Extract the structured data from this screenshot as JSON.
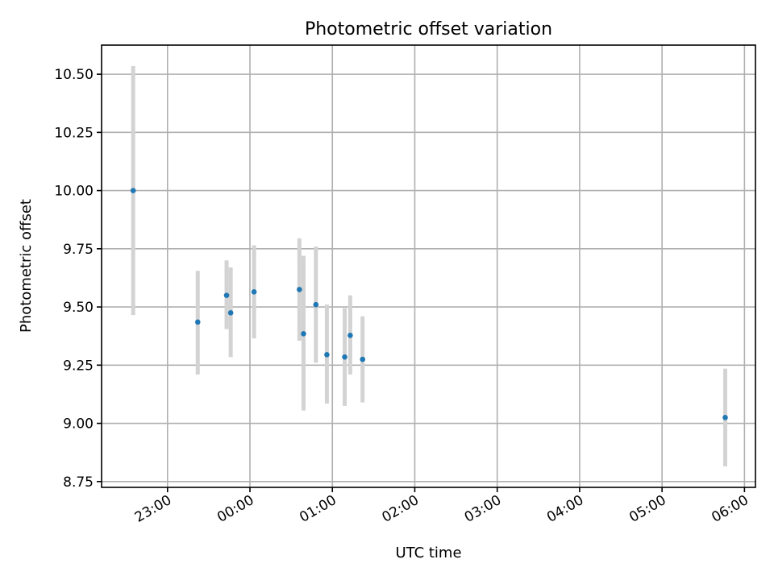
{
  "chart_data": {
    "type": "scatter",
    "title": "Photometric offset variation",
    "xlabel": "UTC time",
    "ylabel": "Photometric offset",
    "grid": true,
    "x_is_time": true,
    "xlim": [
      "22:12",
      "06:08"
    ],
    "ylim": [
      8.725,
      10.625
    ],
    "xticks": [
      "23:00",
      "00:00",
      "01:00",
      "02:00",
      "03:00",
      "04:00",
      "05:00",
      "06:00"
    ],
    "yticks": [
      "8.75",
      "9.00",
      "9.25",
      "9.50",
      "9.75",
      "10.00",
      "10.25",
      "10.50"
    ],
    "series": [
      {
        "color": "#1f77b4",
        "error_color": "#d3d3d3",
        "points": [
          {
            "x": "22:35",
            "y": 10.0,
            "lo": 9.465,
            "hi": 10.535
          },
          {
            "x": "23:22",
            "y": 9.435,
            "lo": 9.21,
            "hi": 9.655
          },
          {
            "x": "23:43",
            "y": 9.55,
            "lo": 9.405,
            "hi": 9.7
          },
          {
            "x": "23:46",
            "y": 9.475,
            "lo": 9.285,
            "hi": 9.67
          },
          {
            "x": "00:03",
            "y": 9.565,
            "lo": 9.365,
            "hi": 9.765
          },
          {
            "x": "00:36",
            "y": 9.575,
            "lo": 9.355,
            "hi": 9.795
          },
          {
            "x": "00:39",
            "y": 9.385,
            "lo": 9.055,
            "hi": 9.72
          },
          {
            "x": "00:48",
            "y": 9.51,
            "lo": 9.26,
            "hi": 9.76
          },
          {
            "x": "00:56",
            "y": 9.295,
            "lo": 9.085,
            "hi": 9.51
          },
          {
            "x": "01:09",
            "y": 9.285,
            "lo": 9.075,
            "hi": 9.495
          },
          {
            "x": "01:13",
            "y": 9.378,
            "lo": 9.21,
            "hi": 9.55
          },
          {
            "x": "01:22",
            "y": 9.275,
            "lo": 9.09,
            "hi": 9.46
          },
          {
            "x": "05:46",
            "y": 9.025,
            "lo": 8.815,
            "hi": 9.235
          }
        ]
      }
    ]
  }
}
